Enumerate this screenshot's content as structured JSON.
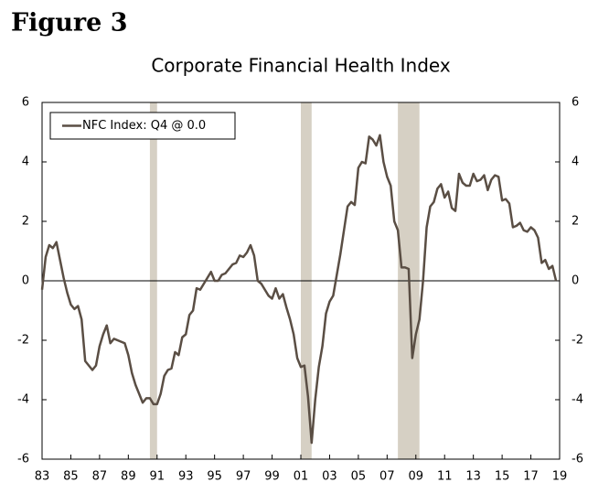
{
  "heading": "Figure 3",
  "chart_data": {
    "type": "line",
    "title": "Corporate Financial Health Index",
    "x": [
      1983.0,
      1983.25,
      1983.5,
      1983.75,
      1984.0,
      1984.25,
      1984.5,
      1984.75,
      1985.0,
      1985.25,
      1985.5,
      1985.75,
      1986.0,
      1986.25,
      1986.5,
      1986.75,
      1987.0,
      1987.25,
      1987.5,
      1987.75,
      1988.0,
      1988.25,
      1988.5,
      1988.75,
      1989.0,
      1989.25,
      1989.5,
      1989.75,
      1990.0,
      1990.25,
      1990.5,
      1990.75,
      1991.0,
      1991.25,
      1991.5,
      1991.75,
      1992.0,
      1992.25,
      1992.5,
      1992.75,
      1993.0,
      1993.25,
      1993.5,
      1993.75,
      1994.0,
      1994.25,
      1994.5,
      1994.75,
      1995.0,
      1995.25,
      1995.5,
      1995.75,
      1996.0,
      1996.25,
      1996.5,
      1996.75,
      1997.0,
      1997.25,
      1997.5,
      1997.75,
      1998.0,
      1998.25,
      1998.5,
      1998.75,
      1999.0,
      1999.25,
      1999.5,
      1999.75,
      2000.0,
      2000.25,
      2000.5,
      2000.75,
      2001.0,
      2001.25,
      2001.5,
      2001.75,
      2002.0,
      2002.25,
      2002.5,
      2002.75,
      2003.0,
      2003.25,
      2003.5,
      2003.75,
      2004.0,
      2004.25,
      2004.5,
      2004.75,
      2005.0,
      2005.25,
      2005.5,
      2005.75,
      2006.0,
      2006.25,
      2006.5,
      2006.75,
      2007.0,
      2007.25,
      2007.5,
      2007.75,
      2008.0,
      2008.25,
      2008.5,
      2008.75,
      2009.0,
      2009.25,
      2009.5,
      2009.75,
      2010.0,
      2010.25,
      2010.5,
      2010.75,
      2011.0,
      2011.25,
      2011.5,
      2011.75,
      2012.0,
      2012.25,
      2012.5,
      2012.75,
      2013.0,
      2013.25,
      2013.5,
      2013.75,
      2014.0,
      2014.25,
      2014.5,
      2014.75,
      2015.0,
      2015.25,
      2015.5,
      2015.75,
      2016.0,
      2016.25,
      2016.5,
      2016.75,
      2017.0,
      2017.25,
      2017.5,
      2017.75,
      2018.0,
      2018.25,
      2018.5,
      2018.75
    ],
    "series": [
      {
        "name": "NFC Index: Q4 @ 0.0",
        "color": "#5a4e44",
        "values": [
          -0.3,
          0.8,
          1.2,
          1.1,
          1.3,
          0.7,
          0.1,
          -0.4,
          -0.8,
          -0.95,
          -0.85,
          -1.3,
          -2.7,
          -2.85,
          -3.0,
          -2.85,
          -2.2,
          -1.8,
          -1.5,
          -2.1,
          -1.95,
          -2.0,
          -2.05,
          -2.1,
          -2.5,
          -3.1,
          -3.5,
          -3.8,
          -4.1,
          -3.95,
          -3.95,
          -4.15,
          -4.15,
          -3.8,
          -3.2,
          -3.0,
          -2.95,
          -2.4,
          -2.5,
          -1.9,
          -1.8,
          -1.15,
          -1.0,
          -0.25,
          -0.3,
          -0.1,
          0.1,
          0.3,
          0.0,
          0.0,
          0.2,
          0.25,
          0.4,
          0.55,
          0.6,
          0.85,
          0.8,
          0.95,
          1.2,
          0.85,
          0.0,
          -0.1,
          -0.3,
          -0.5,
          -0.6,
          -0.25,
          -0.6,
          -0.45,
          -0.9,
          -1.3,
          -1.8,
          -2.6,
          -2.9,
          -2.85,
          -3.9,
          -5.45,
          -4.0,
          -2.9,
          -2.2,
          -1.1,
          -0.7,
          -0.5,
          0.2,
          0.9,
          1.7,
          2.5,
          2.65,
          2.55,
          3.8,
          4.0,
          3.95,
          4.85,
          4.75,
          4.55,
          4.9,
          4.0,
          3.5,
          3.2,
          2.0,
          1.7,
          0.45,
          0.45,
          0.4,
          -2.6,
          -1.8,
          -1.3,
          0.0,
          1.8,
          2.5,
          2.65,
          3.1,
          3.25,
          2.8,
          3.0,
          2.45,
          2.35,
          3.6,
          3.3,
          3.2,
          3.2,
          3.6,
          3.35,
          3.4,
          3.55,
          3.05,
          3.4,
          3.55,
          3.5,
          2.7,
          2.75,
          2.6,
          1.8,
          1.85,
          1.95,
          1.7,
          1.65,
          1.8,
          1.7,
          1.45,
          0.6,
          0.7,
          0.4,
          0.5,
          0.0
        ]
      }
    ],
    "shaded_periods": [
      [
        1990.5,
        1991.0
      ],
      [
        2001.0,
        2001.75
      ],
      [
        2007.75,
        2009.25
      ]
    ],
    "shade_color": "#d6d0c4",
    "xlim": [
      1983,
      2019
    ],
    "xticks": [
      {
        "value": 1983,
        "label": "83"
      },
      {
        "value": 1985,
        "label": "85"
      },
      {
        "value": 1987,
        "label": "87"
      },
      {
        "value": 1989,
        "label": "89"
      },
      {
        "value": 1991,
        "label": "91"
      },
      {
        "value": 1993,
        "label": "93"
      },
      {
        "value": 1995,
        "label": "95"
      },
      {
        "value": 1997,
        "label": "97"
      },
      {
        "value": 1999,
        "label": "99"
      },
      {
        "value": 2001,
        "label": "01"
      },
      {
        "value": 2003,
        "label": "03"
      },
      {
        "value": 2005,
        "label": "05"
      },
      {
        "value": 2007,
        "label": "07"
      },
      {
        "value": 2009,
        "label": "09"
      },
      {
        "value": 2011,
        "label": "11"
      },
      {
        "value": 2013,
        "label": "13"
      },
      {
        "value": 2015,
        "label": "15"
      },
      {
        "value": 2017,
        "label": "17"
      },
      {
        "value": 2019,
        "label": "19"
      }
    ],
    "ylim": [
      -6,
      6
    ],
    "yticks": [
      -6,
      -4,
      -2,
      0,
      2,
      4,
      6
    ],
    "y2lim": [
      -6,
      6
    ],
    "y2ticks": [
      -6,
      -4,
      -2,
      0,
      2,
      4,
      6
    ],
    "legend": "upper left"
  }
}
